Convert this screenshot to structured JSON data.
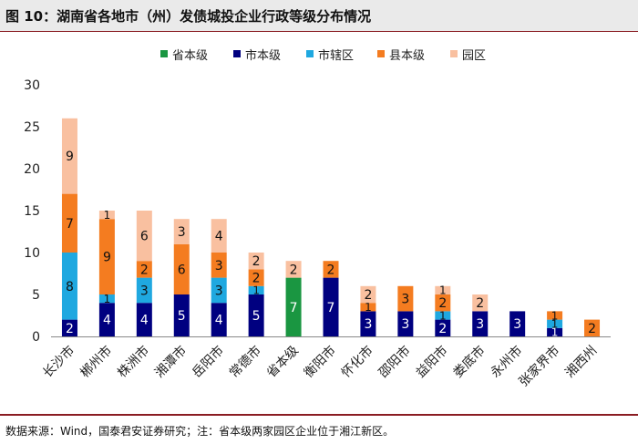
{
  "title": "图 10：湖南省各地市（州）发债城投企业行政等级分布情况",
  "source_note": "数据来源：Wind，国泰君安证券研究；注：省本级两家园区企业位于湘江新区。",
  "colors": {
    "省本级": "#1a9641",
    "市本级": "#000080",
    "市辖区": "#1fa8e0",
    "县本级": "#f47c20",
    "园区": "#f9c0a0"
  },
  "chart_data": {
    "type": "bar",
    "stacked": true,
    "title": "",
    "xlabel": "",
    "ylabel": "",
    "ylim": [
      0,
      30
    ],
    "yticks": [
      0,
      5,
      10,
      15,
      20,
      25,
      30
    ],
    "legend_position": "top-center",
    "categories": [
      "长沙市",
      "郴州市",
      "株洲市",
      "湘潭市",
      "岳阳市",
      "常德市",
      "省本级",
      "衡阳市",
      "怀化市",
      "邵阳市",
      "益阳市",
      "娄底市",
      "永州市",
      "张家界市",
      "湘西州"
    ],
    "series": [
      {
        "name": "省本级",
        "values": [
          0,
          0,
          0,
          0,
          0,
          0,
          7,
          0,
          0,
          0,
          0,
          0,
          0,
          0,
          0
        ]
      },
      {
        "name": "市本级",
        "values": [
          2,
          4,
          4,
          5,
          4,
          5,
          0,
          7,
          3,
          3,
          2,
          3,
          3,
          1,
          0
        ]
      },
      {
        "name": "市辖区",
        "values": [
          8,
          1,
          3,
          0,
          3,
          1,
          0,
          0,
          0,
          0,
          1,
          0,
          0,
          1,
          0
        ]
      },
      {
        "name": "县本级",
        "values": [
          7,
          9,
          2,
          6,
          3,
          2,
          0,
          2,
          1,
          3,
          2,
          0,
          0,
          1,
          2
        ]
      },
      {
        "name": "园区",
        "values": [
          9,
          1,
          6,
          3,
          4,
          2,
          2,
          0,
          2,
          0,
          1,
          2,
          0,
          0,
          0
        ]
      }
    ]
  }
}
